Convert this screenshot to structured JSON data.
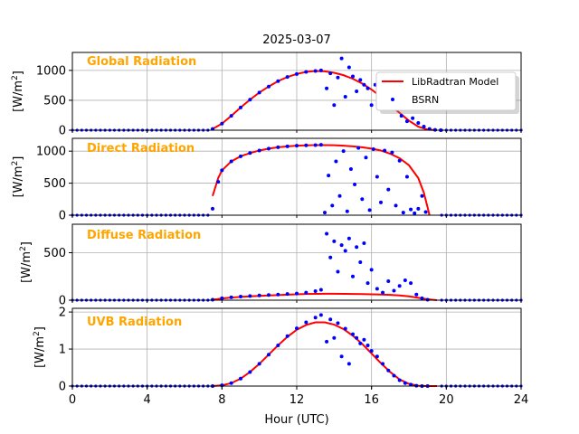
{
  "chart_data": {
    "type": "line",
    "title": "2025-03-07",
    "xlabel": "Hour (UTC)",
    "xlim": [
      0,
      24
    ],
    "x_ticks": [
      0,
      4,
      8,
      12,
      16,
      20,
      24
    ],
    "grid": true,
    "colors": {
      "model": "#ff0000",
      "obs": "#0000ff",
      "label": "#ffa500"
    },
    "legend": {
      "placement": "top-right",
      "entries": [
        "LibRadtran Model",
        "BSRN"
      ]
    },
    "panels": [
      {
        "label": "Global Radiation",
        "ylabel": "[W/m2]",
        "ylim": [
          0,
          1300
        ],
        "y_ticks": [
          0,
          500,
          1000
        ],
        "model": {
          "name": "LibRadtran Model",
          "x": [
            7.5,
            8,
            8.5,
            9,
            9.5,
            10,
            10.5,
            11,
            11.5,
            12,
            12.5,
            13,
            13.5,
            14,
            14.5,
            15,
            15.5,
            16,
            16.5,
            17,
            17.5,
            18,
            18.5,
            19,
            19.5
          ],
          "y": [
            20,
            110,
            240,
            380,
            510,
            630,
            730,
            820,
            890,
            940,
            975,
            990,
            985,
            960,
            920,
            860,
            780,
            680,
            560,
            420,
            290,
            160,
            60,
            10,
            0
          ]
        },
        "obs": {
          "name": "BSRN",
          "x": [
            7.5,
            8,
            8.5,
            9,
            9.5,
            10,
            10.5,
            11,
            11.5,
            12,
            12.5,
            13,
            13.3,
            13.6,
            13.8,
            14.0,
            14.2,
            14.4,
            14.6,
            14.8,
            15.0,
            15.2,
            15.4,
            15.6,
            15.8,
            16.0,
            16.2,
            16.4,
            16.6,
            16.8,
            17.0,
            17.3,
            17.6,
            17.9,
            18.2,
            18.5,
            18.8,
            19.1,
            19.4,
            19.7
          ],
          "y": [
            20,
            110,
            240,
            380,
            510,
            630,
            730,
            820,
            890,
            940,
            975,
            990,
            1000,
            700,
            950,
            420,
            880,
            1200,
            560,
            1050,
            900,
            650,
            840,
            760,
            700,
            420,
            760,
            380,
            620,
            520,
            560,
            600,
            240,
            150,
            200,
            120,
            60,
            20,
            5,
            0
          ]
        }
      },
      {
        "label": "Direct Radiation",
        "ylabel": "[W/m2]",
        "ylim": [
          0,
          1200
        ],
        "y_ticks": [
          0,
          500,
          1000
        ],
        "model": {
          "name": "LibRadtran Model",
          "x": [
            7.5,
            7.8,
            8,
            8.5,
            9,
            9.5,
            10,
            10.5,
            11,
            11.5,
            12,
            12.5,
            13,
            13.5,
            14,
            14.5,
            15,
            15.5,
            16,
            16.5,
            17,
            17.5,
            18,
            18.5,
            18.8,
            19.0,
            19.1
          ],
          "y": [
            300,
            580,
            700,
            840,
            920,
            970,
            1010,
            1040,
            1060,
            1075,
            1085,
            1090,
            1095,
            1095,
            1092,
            1085,
            1075,
            1060,
            1040,
            1010,
            960,
            890,
            780,
            580,
            350,
            120,
            0
          ]
        },
        "obs": {
          "name": "BSRN",
          "x": [
            7.5,
            7.8,
            8,
            8.5,
            9,
            9.5,
            10,
            10.5,
            11,
            11.5,
            12,
            12.5,
            13,
            13.3,
            13.5,
            13.7,
            13.9,
            14.1,
            14.3,
            14.5,
            14.7,
            14.9,
            15.1,
            15.3,
            15.5,
            15.7,
            15.9,
            16.1,
            16.3,
            16.5,
            16.7,
            16.9,
            17.1,
            17.3,
            17.5,
            17.7,
            17.9,
            18.1,
            18.3,
            18.5,
            18.7,
            18.9
          ],
          "y": [
            100,
            520,
            700,
            840,
            920,
            970,
            1010,
            1040,
            1060,
            1075,
            1085,
            1090,
            1095,
            1100,
            40,
            620,
            150,
            840,
            300,
            1000,
            60,
            720,
            480,
            1050,
            250,
            900,
            80,
            1030,
            600,
            200,
            1010,
            400,
            980,
            150,
            850,
            40,
            600,
            90,
            30,
            100,
            300,
            50
          ]
        }
      },
      {
        "label": "Diffuse Radiation",
        "ylabel": "[W/m2]",
        "ylim": [
          0,
          800
        ],
        "y_ticks": [
          0,
          500
        ],
        "model": {
          "name": "LibRadtran Model",
          "x": [
            7.5,
            8,
            8.5,
            9,
            9.5,
            10,
            10.5,
            11,
            11.5,
            12,
            12.5,
            13,
            13.5,
            14,
            14.5,
            15,
            15.5,
            16,
            16.5,
            17,
            17.5,
            18,
            18.5,
            19,
            19.5
          ],
          "y": [
            5,
            18,
            28,
            35,
            40,
            45,
            50,
            54,
            58,
            62,
            65,
            67,
            68,
            68,
            67,
            66,
            64,
            62,
            60,
            56,
            50,
            40,
            25,
            10,
            0
          ]
        },
        "obs": {
          "name": "BSRN",
          "x": [
            7.5,
            8,
            8.5,
            9,
            9.5,
            10,
            10.5,
            11,
            11.5,
            12,
            12.5,
            13,
            13.3,
            13.6,
            13.8,
            14.0,
            14.2,
            14.4,
            14.6,
            14.8,
            15.0,
            15.2,
            15.4,
            15.6,
            15.8,
            16.0,
            16.3,
            16.6,
            16.9,
            17.2,
            17.5,
            17.8,
            18.1,
            18.4,
            18.7,
            19.0
          ],
          "y": [
            5,
            20,
            30,
            38,
            44,
            50,
            55,
            60,
            65,
            70,
            80,
            95,
            110,
            700,
            450,
            620,
            300,
            580,
            520,
            650,
            250,
            560,
            400,
            600,
            180,
            320,
            120,
            80,
            200,
            100,
            150,
            210,
            180,
            60,
            20,
            5
          ]
        }
      },
      {
        "label": "UVB Radiation",
        "ylabel": "[W/m2]",
        "ylim": [
          0,
          2.1
        ],
        "y_ticks": [
          0,
          1,
          2
        ],
        "model": {
          "name": "LibRadtran Model",
          "x": [
            7.5,
            8,
            8.5,
            9,
            9.5,
            10,
            10.5,
            11,
            11.5,
            12,
            12.5,
            13,
            13.5,
            14,
            14.5,
            15,
            15.5,
            16,
            16.5,
            17,
            17.5,
            18,
            18.5,
            19,
            19.5
          ],
          "y": [
            0.0,
            0.02,
            0.08,
            0.2,
            0.38,
            0.6,
            0.85,
            1.1,
            1.33,
            1.52,
            1.65,
            1.72,
            1.72,
            1.66,
            1.54,
            1.36,
            1.14,
            0.88,
            0.62,
            0.38,
            0.18,
            0.06,
            0.01,
            0.0,
            0.0
          ]
        },
        "obs": {
          "name": "BSRN",
          "x": [
            7.5,
            8,
            8.5,
            9,
            9.5,
            10,
            10.5,
            11,
            11.5,
            12,
            12.5,
            13,
            13.3,
            13.6,
            13.8,
            14.0,
            14.2,
            14.4,
            14.6,
            14.8,
            15.0,
            15.2,
            15.4,
            15.6,
            15.8,
            16.0,
            16.3,
            16.6,
            16.9,
            17.2,
            17.5,
            17.8,
            18.1,
            18.4,
            18.7,
            19.0
          ],
          "y": [
            0.0,
            0.02,
            0.08,
            0.2,
            0.38,
            0.6,
            0.85,
            1.1,
            1.35,
            1.56,
            1.72,
            1.85,
            1.92,
            1.2,
            1.8,
            1.3,
            1.7,
            0.8,
            1.55,
            0.6,
            1.4,
            1.3,
            1.15,
            1.25,
            1.1,
            0.95,
            0.8,
            0.6,
            0.42,
            0.28,
            0.16,
            0.08,
            0.04,
            0.01,
            0.0,
            0.0
          ]
        }
      }
    ]
  }
}
